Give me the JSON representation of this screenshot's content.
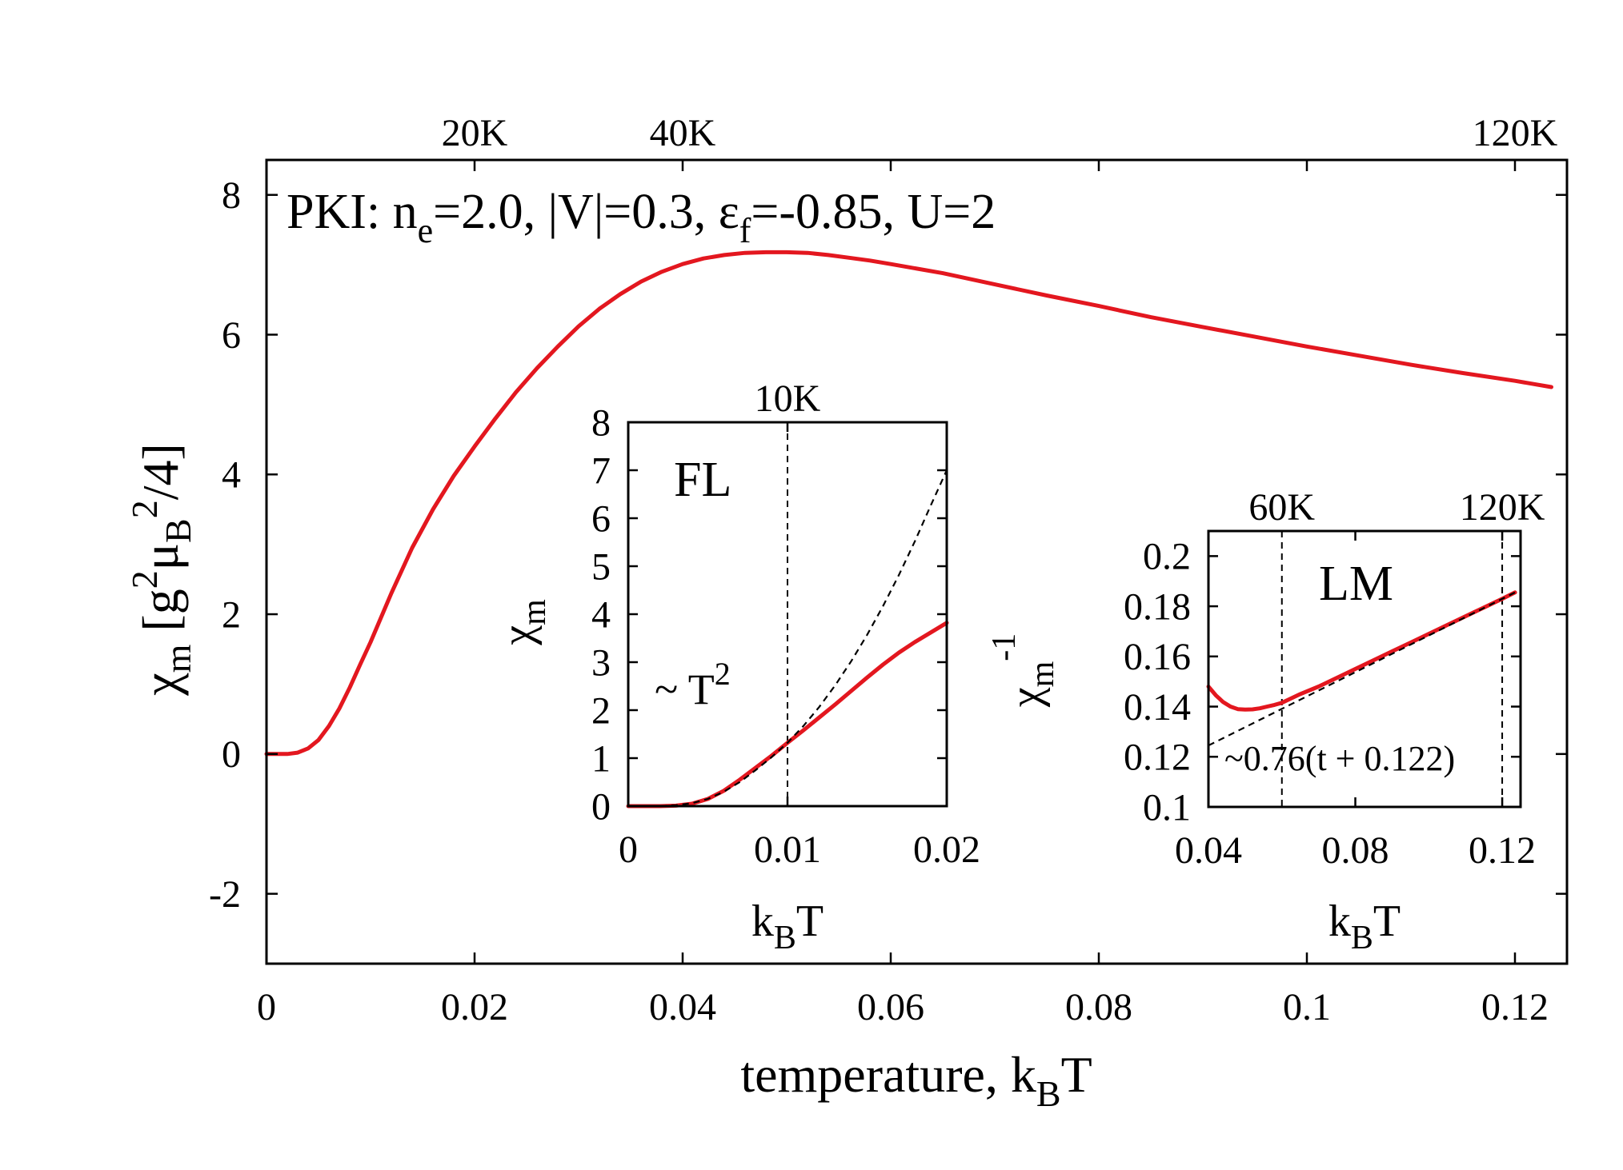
{
  "chart_data": [
    {
      "type": "line",
      "panel": "main",
      "annotation": {
        "prefix": "PKI: n",
        "ne_sub": "e",
        "mid": "=2.0, |V|=0.3, ε",
        "ef_sub": "f",
        "suffix": "=-0.85, U=2"
      },
      "xlabel": {
        "main": "temperature, k",
        "sub": "B",
        "tail": "T"
      },
      "ylabel": {
        "chi": "χ",
        "chi_sub": "m",
        "open": " [g",
        "g_sup": "2",
        "mu": "μ",
        "mu_sub": "B",
        "mu_sup": "2",
        "close": "/4]"
      },
      "xlim": [
        0,
        0.125
      ],
      "ylim": [
        -3,
        8.5
      ],
      "xticks": [
        {
          "value": 0,
          "label": "0"
        },
        {
          "value": 0.02,
          "label": "0.02"
        },
        {
          "value": 0.04,
          "label": "0.04"
        },
        {
          "value": 0.06,
          "label": "0.06"
        },
        {
          "value": 0.08,
          "label": "0.08"
        },
        {
          "value": 0.1,
          "label": "0.1"
        },
        {
          "value": 0.12,
          "label": "0.12"
        }
      ],
      "yticks": [
        {
          "value": -2,
          "label": "-2"
        },
        {
          "value": 0,
          "label": "0"
        },
        {
          "value": 2,
          "label": "2"
        },
        {
          "value": 4,
          "label": "4"
        },
        {
          "value": 6,
          "label": "6"
        },
        {
          "value": 8,
          "label": "8"
        }
      ],
      "top_ticks": [
        {
          "value": 0.02,
          "label": "20K"
        },
        {
          "value": 0.04,
          "label": "40K"
        },
        {
          "value": 0.12,
          "label": "120K"
        }
      ],
      "series": [
        {
          "name": "chi_m",
          "color": "#e3171f",
          "x": [
            0,
            0.002,
            0.003,
            0.004,
            0.005,
            0.006,
            0.007,
            0.008,
            0.009,
            0.01,
            0.012,
            0.014,
            0.016,
            0.018,
            0.02,
            0.022,
            0.024,
            0.026,
            0.028,
            0.03,
            0.032,
            0.034,
            0.036,
            0.038,
            0.04,
            0.042,
            0.044,
            0.046,
            0.048,
            0.05,
            0.052,
            0.054,
            0.056,
            0.058,
            0.06,
            0.065,
            0.07,
            0.075,
            0.08,
            0.085,
            0.09,
            0.095,
            0.1,
            0.105,
            0.11,
            0.115,
            0.12,
            0.1235
          ],
          "y": [
            0,
            0.0,
            0.02,
            0.08,
            0.2,
            0.4,
            0.65,
            0.95,
            1.28,
            1.6,
            2.3,
            2.95,
            3.5,
            3.98,
            4.4,
            4.8,
            5.18,
            5.52,
            5.83,
            6.12,
            6.37,
            6.58,
            6.76,
            6.9,
            7.01,
            7.09,
            7.14,
            7.17,
            7.18,
            7.18,
            7.17,
            7.14,
            7.1,
            7.06,
            7.01,
            6.88,
            6.72,
            6.56,
            6.41,
            6.25,
            6.11,
            5.97,
            5.83,
            5.7,
            5.57,
            5.45,
            5.34,
            5.25
          ]
        }
      ]
    },
    {
      "type": "line",
      "panel": "inset-FL",
      "label": "FL",
      "annotation": {
        "prefix": "~ T",
        "sup": "2"
      },
      "xlabel": {
        "main": "k",
        "sub": "B",
        "tail": "T"
      },
      "ylabel": {
        "main": "χ",
        "sub": "m"
      },
      "xlim": [
        0,
        0.02
      ],
      "ylim": [
        0,
        8
      ],
      "xticks": [
        {
          "value": 0,
          "label": "0"
        },
        {
          "value": 0.01,
          "label": "0.01"
        },
        {
          "value": 0.02,
          "label": "0.02"
        }
      ],
      "yticks": [
        {
          "value": 0,
          "label": "0"
        },
        {
          "value": 1,
          "label": "1"
        },
        {
          "value": 2,
          "label": "2"
        },
        {
          "value": 3,
          "label": "3"
        },
        {
          "value": 4,
          "label": "4"
        },
        {
          "value": 5,
          "label": "5"
        },
        {
          "value": 6,
          "label": "6"
        },
        {
          "value": 7,
          "label": "7"
        },
        {
          "value": 8,
          "label": "8"
        }
      ],
      "top_ticks": [
        {
          "value": 0.01,
          "label": "10K"
        }
      ],
      "vlines": [
        0.01
      ],
      "series": [
        {
          "name": "chi_m",
          "color": "#e3171f",
          "x": [
            0,
            0.001,
            0.002,
            0.003,
            0.004,
            0.005,
            0.006,
            0.007,
            0.008,
            0.009,
            0.01,
            0.011,
            0.012,
            0.013,
            0.014,
            0.015,
            0.016,
            0.017,
            0.018,
            0.019,
            0.02
          ],
          "y": [
            0,
            0,
            0,
            0.01,
            0.05,
            0.15,
            0.32,
            0.55,
            0.8,
            1.05,
            1.32,
            1.58,
            1.85,
            2.12,
            2.4,
            2.68,
            2.95,
            3.2,
            3.42,
            3.62,
            3.82
          ]
        },
        {
          "name": "T^2 fit",
          "style": "dashed",
          "x": [
            0.002,
            0.003,
            0.004,
            0.005,
            0.006,
            0.007,
            0.008,
            0.009,
            0.01,
            0.011,
            0.012,
            0.013,
            0.014,
            0.015,
            0.016,
            0.017,
            0.018,
            0.019,
            0.02
          ],
          "y": [
            0,
            0.02,
            0.06,
            0.15,
            0.3,
            0.5,
            0.75,
            1.02,
            1.32,
            1.67,
            2.07,
            2.52,
            3.02,
            3.57,
            4.17,
            4.82,
            5.52,
            6.27,
            7.0
          ]
        }
      ]
    },
    {
      "type": "line",
      "panel": "inset-LM",
      "label": "LM",
      "annotation": {
        "text": "~0.76(t + 0.122)"
      },
      "xlabel": {
        "main": "k",
        "sub": "B",
        "tail": "T"
      },
      "ylabel": {
        "main": "χ",
        "sub": "m",
        "sup": "-1"
      },
      "xlim": [
        0.04,
        0.125
      ],
      "ylim": [
        0.1,
        0.21
      ],
      "xticks": [
        {
          "value": 0.04,
          "label": "0.04"
        },
        {
          "value": 0.08,
          "label": "0.08"
        },
        {
          "value": 0.12,
          "label": "0.12"
        }
      ],
      "yticks": [
        {
          "value": 0.1,
          "label": "0.1"
        },
        {
          "value": 0.12,
          "label": "0.12"
        },
        {
          "value": 0.14,
          "label": "0.14"
        },
        {
          "value": 0.16,
          "label": "0.16"
        },
        {
          "value": 0.18,
          "label": "0.18"
        },
        {
          "value": 0.2,
          "label": "0.2"
        }
      ],
      "top_ticks": [
        {
          "value": 0.06,
          "label": "60K"
        },
        {
          "value": 0.12,
          "label": "120K"
        }
      ],
      "vlines": [
        0.06,
        0.12
      ],
      "series": [
        {
          "name": "inverse chi_m",
          "color": "#e3171f",
          "x": [
            0.04,
            0.042,
            0.044,
            0.046,
            0.048,
            0.05,
            0.052,
            0.054,
            0.056,
            0.058,
            0.06,
            0.065,
            0.07,
            0.075,
            0.08,
            0.085,
            0.09,
            0.095,
            0.1,
            0.105,
            0.11,
            0.115,
            0.12,
            0.1235
          ],
          "y": [
            0.148,
            0.1445,
            0.1418,
            0.14,
            0.139,
            0.1388,
            0.1389,
            0.1393,
            0.14,
            0.1407,
            0.1415,
            0.145,
            0.148,
            0.1515,
            0.155,
            0.1585,
            0.162,
            0.1655,
            0.169,
            0.1725,
            0.176,
            0.1795,
            0.183,
            0.1855
          ]
        },
        {
          "name": "linear fit",
          "style": "dashed",
          "x": [
            0.04,
            0.1235
          ],
          "y": [
            0.1245,
            0.1855
          ]
        }
      ]
    }
  ]
}
